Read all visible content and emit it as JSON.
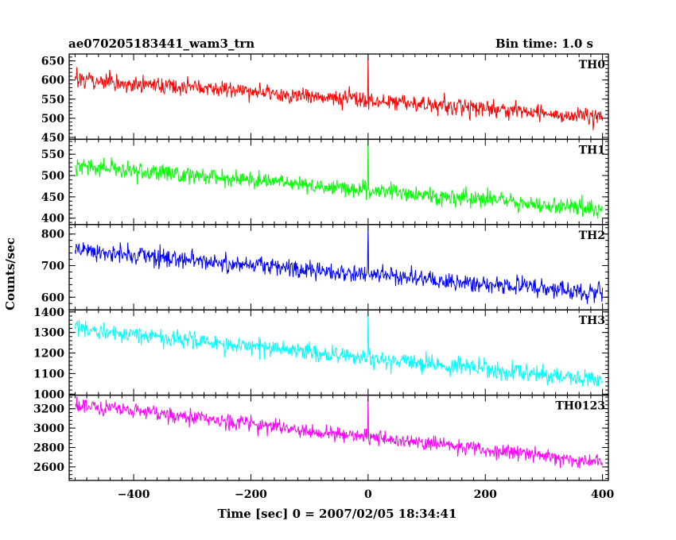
{
  "header": {
    "left_title": "ae070205183441_wam3_trn",
    "right_title": "Bin time: 1.0 s"
  },
  "chart_data": {
    "type": "line",
    "xlabel": "Time [sec] 0 = 2007/02/05 18:34:41",
    "ylabel": "Counts/sec",
    "xlim": [
      -510,
      410
    ],
    "xticks": [
      -400,
      -200,
      0,
      200,
      400
    ],
    "x_start": -500,
    "x_end": 400,
    "bin_time": 1.0,
    "panels": [
      {
        "name": "TH0",
        "color": "#ff0000",
        "ylim": [
          445,
          668
        ],
        "yticks": [
          450,
          500,
          550,
          600,
          650
        ],
        "trend_start": 603,
        "trend_end": 502,
        "noise_amplitude": 38,
        "spike_time": 0,
        "spike_value": 668
      },
      {
        "name": "TH1",
        "color": "#00ff00",
        "ylim": [
          385,
          585
        ],
        "yticks": [
          400,
          450,
          500,
          550
        ],
        "trend_start": 523,
        "trend_end": 421,
        "noise_amplitude": 36,
        "spike_time": 0,
        "spike_value": 585
      },
      {
        "name": "TH2",
        "color": "#0000ff",
        "ylim": [
          560,
          830
        ],
        "yticks": [
          600,
          700,
          800
        ],
        "trend_start": 748,
        "trend_end": 612,
        "noise_amplitude": 50,
        "spike_time": 0,
        "spike_value": 830
      },
      {
        "name": "TH3",
        "color": "#00ffff",
        "ylim": [
          995,
          1410
        ],
        "yticks": [
          1000,
          1100,
          1200,
          1300,
          1400
        ],
        "trend_start": 1318,
        "trend_end": 1062,
        "noise_amplitude": 75,
        "spike_time": 0,
        "spike_value": 1410
      },
      {
        "name": "TH0123",
        "color": "#ff00ff",
        "ylim": [
          2460,
          3340
        ],
        "yticks": [
          2600,
          2800,
          3000,
          3200
        ],
        "trend_start": 3245,
        "trend_end": 2642,
        "noise_amplitude": 130,
        "spike_time": 0,
        "spike_value": 3340
      }
    ]
  }
}
